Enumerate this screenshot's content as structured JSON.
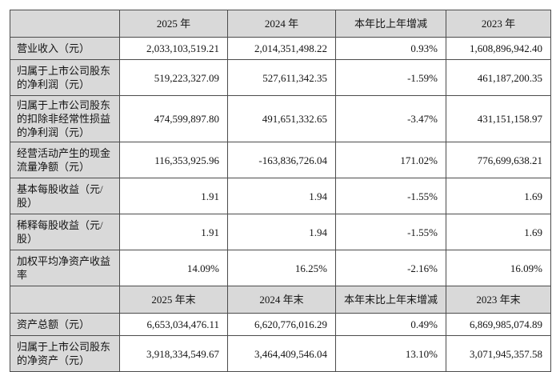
{
  "colors": {
    "header_bg": "#d9d9d9",
    "cell_bg": "#ffffff",
    "border": "#4c4c4c",
    "text": "#141414"
  },
  "table": {
    "sections": [
      {
        "header": [
          "",
          "2025 年",
          "2024 年",
          "本年比上年增减",
          "2023 年"
        ],
        "rows": [
          {
            "label": "营业收入（元）",
            "lines": 1,
            "values": [
              "2,033,103,519.21",
              "2,014,351,498.22",
              "0.93%",
              "1,608,896,942.40"
            ]
          },
          {
            "label": "归属于上市公司股东的净利润（元）",
            "lines": 2,
            "values": [
              "519,223,327.09",
              "527,611,342.35",
              "-1.59%",
              "461,187,200.35"
            ]
          },
          {
            "label": "归属于上市公司股东的扣除非经常性损益的净利润（元）",
            "lines": 3,
            "values": [
              "474,599,897.80",
              "491,651,332.65",
              "-3.47%",
              "431,151,158.97"
            ]
          },
          {
            "label": "经营活动产生的现金流量净额（元）",
            "lines": 2,
            "values": [
              "116,353,925.96",
              "-163,836,726.04",
              "171.02%",
              "776,699,638.21"
            ]
          },
          {
            "label": "基本每股收益（元/股）",
            "lines": 2,
            "values": [
              "1.91",
              "1.94",
              "-1.55%",
              "1.69"
            ]
          },
          {
            "label": "稀释每股收益（元/股）",
            "lines": 2,
            "values": [
              "1.91",
              "1.94",
              "-1.55%",
              "1.69"
            ]
          },
          {
            "label": "加权平均净资产收益率",
            "lines": 2,
            "values": [
              "14.09%",
              "16.25%",
              "-2.16%",
              "16.09%"
            ]
          }
        ]
      },
      {
        "header": [
          "",
          "2025 年末",
          "2024 年末",
          "本年末比上年末增减",
          "2023 年末"
        ],
        "rows": [
          {
            "label": "资产总额（元）",
            "lines": 1,
            "values": [
              "6,653,034,476.11",
              "6,620,776,016.29",
              "0.49%",
              "6,869,985,074.89"
            ]
          },
          {
            "label": "归属于上市公司股东的净资产（元）",
            "lines": 2,
            "values": [
              "3,918,334,549.67",
              "3,464,409,546.04",
              "13.10%",
              "3,071,945,357.58"
            ]
          }
        ]
      }
    ]
  }
}
